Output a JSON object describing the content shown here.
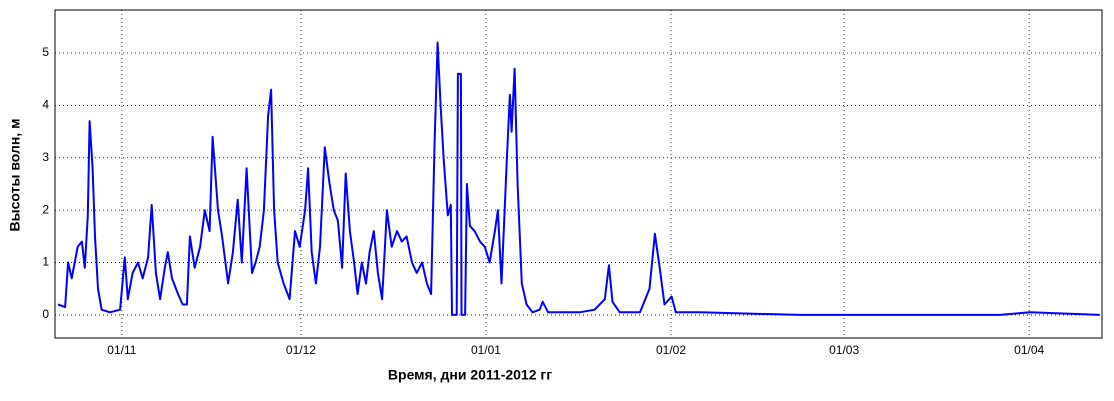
{
  "chart_data": {
    "type": "line",
    "x_label": "Время, дни 2011-2012 гг",
    "y_label": "Высоты волн, м",
    "xlim": [
      -11.2,
      164.2
    ],
    "ylim": [
      -0.44,
      5.82
    ],
    "yticks": [
      0,
      1,
      2,
      3,
      4,
      5
    ],
    "xticks": [
      {
        "value": 0,
        "label": "01/11"
      },
      {
        "value": 30,
        "label": "01/12"
      },
      {
        "value": 61,
        "label": "01/01"
      },
      {
        "value": 92,
        "label": "01/02"
      },
      {
        "value": 121,
        "label": "01/03"
      },
      {
        "value": 152,
        "label": "01/04"
      }
    ],
    "grid": true,
    "series": [
      {
        "color": "#0000ff",
        "x": [
          -10.7,
          -9.5,
          -9.0,
          -8.4,
          -7.4,
          -6.7,
          -6.2,
          -5.7,
          -5.4,
          -4.9,
          -4.5,
          -4.0,
          -3.4,
          -2.0,
          -0.3,
          0.5,
          1.0,
          1.8,
          2.7,
          3.5,
          4.4,
          5.0,
          5.7,
          6.4,
          7.2,
          7.7,
          8.4,
          9.4,
          10.2,
          10.9,
          11.4,
          12.2,
          13.1,
          13.9,
          14.7,
          15.2,
          16.1,
          16.8,
          17.8,
          18.6,
          19.4,
          20.1,
          20.9,
          21.8,
          22.4,
          23.1,
          23.8,
          24.5,
          25.0,
          25.5,
          26.1,
          27.1,
          28.1,
          29.0,
          29.8,
          30.7,
          31.2,
          31.8,
          32.5,
          33.2,
          34.0,
          34.8,
          35.5,
          36.2,
          36.9,
          37.5,
          38.2,
          38.9,
          39.5,
          40.2,
          40.9,
          41.5,
          42.2,
          42.9,
          43.6,
          44.4,
          45.2,
          46.1,
          46.9,
          47.7,
          48.6,
          49.4,
          50.3,
          51.1,
          51.8,
          52.4,
          52.9,
          53.4,
          53.9,
          54.6,
          55.1,
          55.3,
          55.9,
          56.1,
          56.3,
          56.8,
          56.9,
          57.5,
          57.8,
          58.3,
          59.1,
          60.0,
          60.8,
          61.6,
          62.5,
          63.0,
          63.6,
          64.5,
          65.0,
          65.3,
          65.8,
          66.3,
          67.0,
          67.8,
          68.8,
          70.0,
          70.5,
          71.4,
          73.4,
          76.7,
          79.2,
          80.9,
          81.6,
          82.2,
          83.4,
          86.8,
          88.4,
          89.3,
          90.1,
          90.9,
          92.1,
          92.8,
          95.1,
          96.8,
          113.6,
          147.1,
          152.1,
          163.8
        ],
        "values": [
          0.2,
          0.15,
          1.0,
          0.7,
          1.3,
          1.4,
          0.9,
          1.9,
          3.7,
          2.8,
          1.5,
          0.5,
          0.1,
          0.05,
          0.1,
          1.1,
          0.3,
          0.8,
          1.0,
          0.7,
          1.1,
          2.1,
          0.8,
          0.3,
          0.9,
          1.2,
          0.7,
          0.4,
          0.2,
          0.2,
          1.5,
          0.9,
          1.3,
          2.0,
          1.6,
          3.4,
          2.0,
          1.5,
          0.6,
          1.2,
          2.2,
          1.0,
          2.8,
          0.8,
          1.0,
          1.3,
          2.0,
          3.8,
          4.3,
          2.0,
          1.0,
          0.6,
          0.3,
          1.6,
          1.3,
          2.0,
          2.8,
          1.2,
          0.6,
          1.3,
          3.2,
          2.5,
          2.0,
          1.8,
          0.9,
          2.7,
          1.6,
          1.0,
          0.4,
          1.0,
          0.6,
          1.2,
          1.6,
          0.8,
          0.3,
          2.0,
          1.3,
          1.6,
          1.4,
          1.5,
          1.0,
          0.8,
          1.0,
          0.6,
          0.4,
          3.3,
          5.2,
          4.0,
          3.0,
          1.9,
          2.1,
          0,
          0,
          0,
          4.6,
          4.6,
          0,
          0,
          2.5,
          1.7,
          1.6,
          1.4,
          1.3,
          1.0,
          1.6,
          2.0,
          0.6,
          3.0,
          4.2,
          3.5,
          4.7,
          2.5,
          0.6,
          0.2,
          0.05,
          0.1,
          0.25,
          0.05,
          0.05,
          0.05,
          0.1,
          0.3,
          0.95,
          0.25,
          0.05,
          0.05,
          0.5,
          1.55,
          0.9,
          0.2,
          0.35,
          0.05,
          0.05,
          0.05,
          0.0,
          0.0,
          0.05,
          0.0
        ]
      }
    ]
  }
}
